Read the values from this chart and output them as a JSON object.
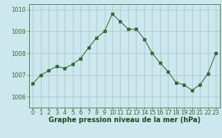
{
  "x": [
    0,
    1,
    2,
    3,
    4,
    5,
    6,
    7,
    8,
    9,
    10,
    11,
    12,
    13,
    14,
    15,
    16,
    17,
    18,
    19,
    20,
    21,
    22,
    23
  ],
  "y": [
    1006.6,
    1007.0,
    1007.2,
    1007.4,
    1007.3,
    1007.5,
    1007.75,
    1008.25,
    1008.7,
    1009.0,
    1009.8,
    1009.45,
    1009.1,
    1009.1,
    1008.65,
    1008.0,
    1007.55,
    1007.15,
    1006.65,
    1006.55,
    1006.3,
    1006.55,
    1007.05,
    1008.0
  ],
  "line_color": "#2d6a2d",
  "marker": "s",
  "marker_size": 2.5,
  "bg_color": "#cce8ee",
  "grid_color": "#b0cdd4",
  "axis_color": "#2d6a2d",
  "xlabel": "Graphe pression niveau de la mer (hPa)",
  "xlabel_color": "#1a4a1a",
  "ylim": [
    1005.5,
    1010.25
  ],
  "yticks": [
    1006,
    1007,
    1008,
    1009,
    1010
  ],
  "xticks": [
    0,
    1,
    2,
    3,
    4,
    5,
    6,
    7,
    8,
    9,
    10,
    11,
    12,
    13,
    14,
    15,
    16,
    17,
    18,
    19,
    20,
    21,
    22,
    23
  ],
  "tick_fontsize": 6,
  "xlabel_fontsize": 7
}
